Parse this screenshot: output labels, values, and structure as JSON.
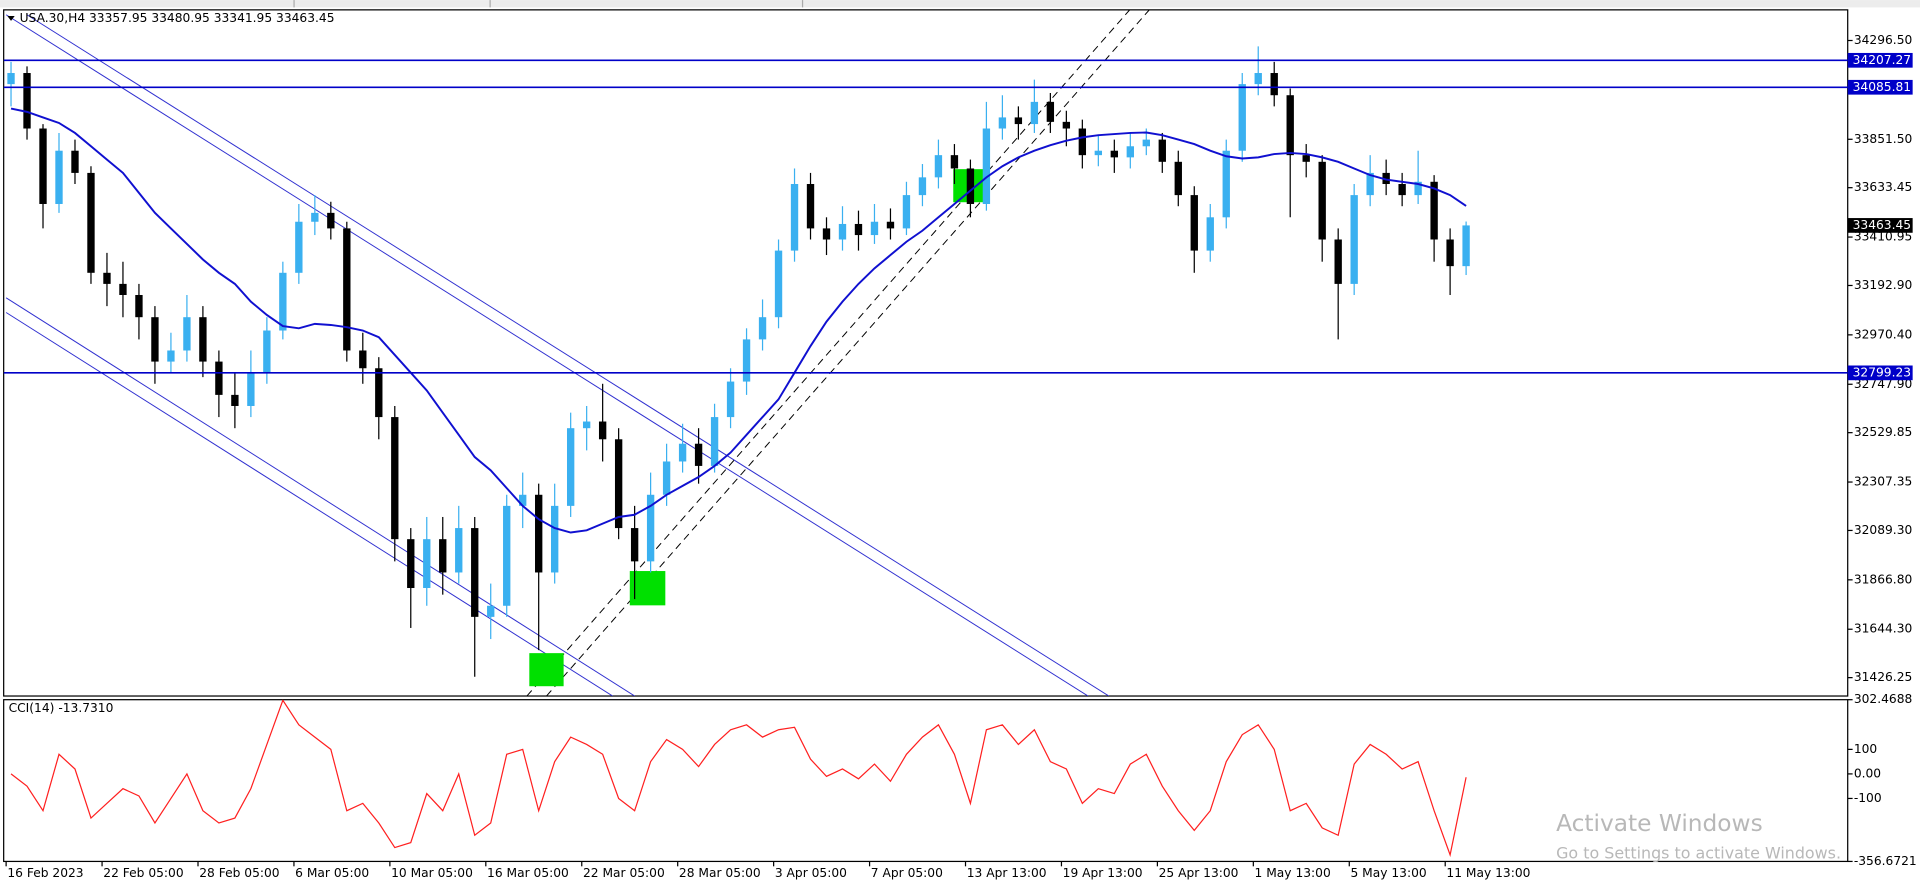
{
  "header": {
    "symbol_info": "USA.30,H4 33357.95 33480.95 33341.95 33463.45"
  },
  "chart_data": [
    {
      "type": "candlestick",
      "categories": [
        "16 Feb 2023",
        null,
        null,
        null,
        null,
        null,
        "22 Feb 05:00",
        null,
        null,
        null,
        null,
        null,
        "28 Feb 05:00",
        null,
        null,
        null,
        null,
        null,
        "6 Mar 05:00",
        null,
        null,
        null,
        null,
        null,
        "10 Mar 05:00",
        null,
        null,
        null,
        null,
        null,
        "16 Mar 05:00",
        null,
        null,
        null,
        null,
        null,
        "22 Mar 05:00",
        null,
        null,
        null,
        null,
        null,
        "28 Mar 05:00",
        null,
        null,
        null,
        null,
        null,
        "3 Apr 05:00",
        null,
        null,
        null,
        null,
        null,
        "7 Apr 05:00",
        null,
        null,
        null,
        null,
        null,
        "13 Apr 13:00",
        null,
        null,
        null,
        null,
        null,
        "19 Apr 13:00",
        null,
        null,
        null,
        null,
        null,
        "25 Apr 13:00",
        null,
        null,
        null,
        null,
        null,
        "1 May 13:00",
        null,
        null,
        null,
        null,
        null,
        "5 May 13:00",
        null,
        null,
        null,
        null,
        null,
        "11 May 13:00",
        null
      ],
      "open": [
        34100,
        34150,
        33900,
        33560,
        33800,
        33700,
        33250,
        33200,
        33150,
        33050,
        32850,
        32900,
        33050,
        32850,
        32700,
        32650,
        32800,
        32990,
        33250,
        33480,
        33520,
        33450,
        32900,
        32820,
        32600,
        32050,
        31830,
        32050,
        31900,
        32100,
        31700,
        31750,
        32200,
        32250,
        31900,
        32200,
        32550,
        32580,
        32500,
        32100,
        31950,
        32250,
        32400,
        32480,
        32380,
        32600,
        32760,
        32950,
        33050,
        33350,
        33650,
        33450,
        33400,
        33470,
        33420,
        33480,
        33450,
        33600,
        33680,
        33780,
        33720,
        33560,
        33900,
        33950,
        33920,
        34020,
        33930,
        33900,
        33780,
        33800,
        33770,
        33820,
        33850,
        33750,
        33600,
        33350,
        33500,
        33800,
        34100,
        34150,
        34050,
        33780,
        33750,
        33400,
        33200,
        33600,
        33700,
        33650,
        33600,
        33660,
        33400,
        33280
      ],
      "high": [
        34200,
        34180,
        33920,
        33880,
        33850,
        33730,
        33340,
        33300,
        33200,
        33100,
        32980,
        33150,
        33100,
        32900,
        32800,
        32900,
        33050,
        33300,
        33560,
        33600,
        33570,
        33480,
        32980,
        32870,
        32650,
        32100,
        32150,
        32150,
        32200,
        32150,
        31850,
        32250,
        32350,
        32300,
        32300,
        32620,
        32650,
        32750,
        32550,
        32200,
        32350,
        32480,
        32570,
        32550,
        32660,
        32820,
        33000,
        33130,
        33400,
        33720,
        33700,
        33500,
        33550,
        33530,
        33560,
        33540,
        33660,
        33740,
        33850,
        33830,
        33760,
        34020,
        34050,
        34000,
        34120,
        34060,
        33980,
        33940,
        33870,
        33850,
        33880,
        33900,
        33880,
        33800,
        33640,
        33560,
        33850,
        34150,
        34270,
        34200,
        34080,
        33830,
        33780,
        33450,
        33650,
        33780,
        33760,
        33700,
        33800,
        33690,
        33450,
        33480.95
      ],
      "low": [
        34000,
        33850,
        33450,
        33520,
        33650,
        33200,
        33100,
        33050,
        32950,
        32750,
        32800,
        32850,
        32780,
        32600,
        32550,
        32600,
        32750,
        32950,
        33200,
        33420,
        33400,
        32850,
        32750,
        32500,
        31950,
        31650,
        31750,
        31800,
        31850,
        31430,
        31600,
        31700,
        32100,
        31550,
        31850,
        32150,
        32450,
        32400,
        32050,
        31780,
        31900,
        32200,
        32350,
        32300,
        32350,
        32550,
        32700,
        32900,
        33000,
        33300,
        33400,
        33330,
        33350,
        33350,
        33380,
        33400,
        33420,
        33550,
        33630,
        33650,
        33500,
        33530,
        33850,
        33850,
        33880,
        33880,
        33820,
        33720,
        33730,
        33700,
        33720,
        33780,
        33700,
        33550,
        33250,
        33300,
        33450,
        33750,
        34050,
        34000,
        33500,
        33680,
        33300,
        32950,
        33150,
        33550,
        33600,
        33550,
        33560,
        33300,
        33150,
        33240
      ],
      "close": [
        34150,
        33900,
        33560,
        33800,
        33700,
        33250,
        33200,
        33150,
        33050,
        32850,
        32900,
        33050,
        32850,
        32700,
        32650,
        32800,
        32990,
        33250,
        33480,
        33520,
        33450,
        32900,
        32820,
        32600,
        32050,
        31830,
        32050,
        31900,
        32100,
        31700,
        31750,
        32200,
        32250,
        31900,
        32200,
        32550,
        32580,
        32500,
        32100,
        31950,
        32250,
        32400,
        32480,
        32380,
        32600,
        32760,
        32950,
        33050,
        33350,
        33650,
        33450,
        33400,
        33470,
        33420,
        33480,
        33450,
        33600,
        33680,
        33780,
        33720,
        33560,
        33900,
        33950,
        33920,
        34020,
        33930,
        33900,
        33780,
        33800,
        33770,
        33820,
        33850,
        33750,
        33600,
        33350,
        33500,
        33800,
        34100,
        34150,
        34050,
        33780,
        33750,
        33400,
        33200,
        33600,
        33700,
        33650,
        33600,
        33660,
        33400,
        33280,
        33463.45
      ],
      "up_color": "#3ab0f0",
      "down_color": "#000000",
      "series": [
        {
          "color": "#1010d0",
          "values": [
            33990,
            33975,
            33950,
            33925,
            33880,
            33820,
            33760,
            33700,
            33610,
            33520,
            33450,
            33380,
            33310,
            33250,
            33200,
            33120,
            33060,
            33010,
            33000,
            33020,
            33015,
            33005,
            32990,
            32960,
            32880,
            32800,
            32720,
            32620,
            32520,
            32420,
            32360,
            32280,
            32200,
            32140,
            32100,
            32080,
            32090,
            32120,
            32150,
            32160,
            32200,
            32250,
            32290,
            32330,
            32380,
            32440,
            32520,
            32600,
            32680,
            32800,
            32920,
            33030,
            33120,
            33200,
            33270,
            33330,
            33390,
            33440,
            33500,
            33560,
            33620,
            33680,
            33730,
            33770,
            33800,
            33825,
            33845,
            33860,
            33870,
            33875,
            33880,
            33882,
            33870,
            33850,
            33830,
            33800,
            33775,
            33765,
            33770,
            33785,
            33790,
            33785,
            33770,
            33750,
            33720,
            33690,
            33670,
            33660,
            33650,
            33630,
            33600,
            33551
          ]
        }
      ],
      "levels": [
        34207.27,
        34085.81,
        32799.23
      ],
      "level_color": "#0000c8",
      "last_price": 33463.45,
      "ylim": [
        31343.4,
        34434.5
      ],
      "yticks": [
        {
          "value": 34296.5,
          "label": "34296.50"
        },
        {
          "value": 33851.5,
          "label": "33851.50"
        },
        33633.45,
        33410.95,
        {
          "value": 33192.9,
          "label": "33192.90"
        },
        {
          "value": 32970.4,
          "label": "32970.40"
        },
        {
          "value": 32747.9,
          "label": "32747.90"
        },
        32529.85,
        32307.35,
        {
          "value": 32089.3,
          "label": "32089.30"
        },
        {
          "value": 31866.8,
          "label": "31866.80"
        },
        {
          "value": 31644.3,
          "label": "31644.30"
        },
        31426.25
      ]
    },
    {
      "type": "line",
      "title": "CCI(14) -13.7310",
      "color": "#ff2020",
      "values": [
        0,
        -50,
        -150,
        80,
        20,
        -180,
        -120,
        -60,
        -90,
        -200,
        -100,
        0,
        -150,
        -200,
        -180,
        -60,
        120,
        300,
        200,
        150,
        100,
        -150,
        -120,
        -200,
        -300,
        -280,
        -80,
        -150,
        0,
        -250,
        -200,
        80,
        100,
        -150,
        50,
        150,
        120,
        80,
        -100,
        -150,
        50,
        140,
        100,
        30,
        120,
        180,
        200,
        150,
        180,
        190,
        60,
        -10,
        20,
        -20,
        40,
        -30,
        80,
        150,
        200,
        80,
        -120,
        180,
        200,
        120,
        180,
        50,
        20,
        -120,
        -60,
        -80,
        40,
        80,
        -50,
        -150,
        -230,
        -150,
        50,
        160,
        200,
        100,
        -150,
        -120,
        -220,
        -250,
        40,
        120,
        80,
        20,
        50,
        -150,
        -330,
        -13.731
      ],
      "ylim": [
        -356.6721,
        302.4688
      ],
      "yticks": [
        302.4688,
        100,
        {
          "value": 0,
          "label": "0.00"
        },
        -100,
        -356.6721
      ]
    }
  ],
  "watermark": {
    "title": "Activate Windows",
    "subtitle": "Go to Settings to activate Windows."
  }
}
